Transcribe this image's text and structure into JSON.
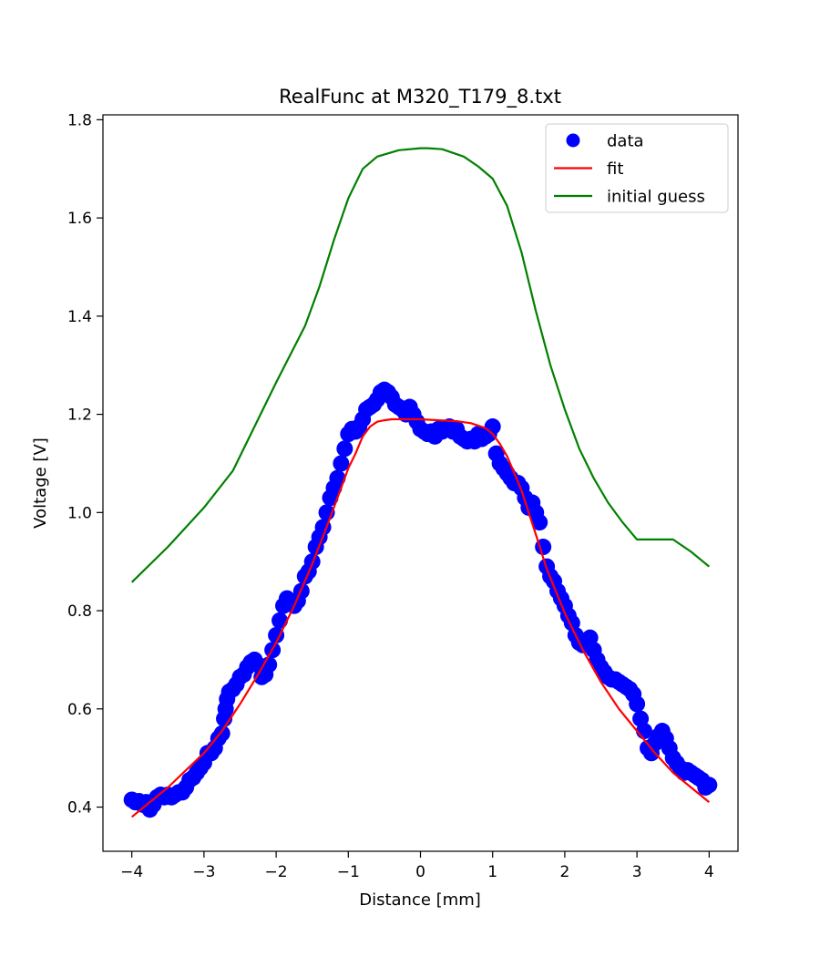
{
  "chart_data": {
    "type": "line",
    "title": "RealFunc at M320_T179_8.txt",
    "xlabel": "Distance [mm]",
    "ylabel": "Voltage [V]",
    "xlim": [
      -4.4,
      4.4
    ],
    "ylim": [
      0.31,
      1.81
    ],
    "xticks": [
      -4,
      -3,
      -2,
      -1,
      0,
      1,
      2,
      3,
      4
    ],
    "xtick_labels": [
      "−4",
      "−3",
      "−2",
      "−1",
      "0",
      "1",
      "2",
      "3",
      "4"
    ],
    "yticks": [
      0.4,
      0.6,
      0.8,
      1.0,
      1.2,
      1.4,
      1.6,
      1.8
    ],
    "ytick_labels": [
      "0.4",
      "0.6",
      "0.8",
      "1.0",
      "1.2",
      "1.4",
      "1.6",
      "1.8"
    ],
    "grid": false,
    "legend_position": "top-right",
    "series": [
      {
        "name": " data",
        "kind": "scatter",
        "color": "#0000ff",
        "points": [
          [
            -4.0,
            0.415
          ],
          [
            -3.95,
            0.41
          ],
          [
            -3.9,
            0.412
          ],
          [
            -3.85,
            0.405
          ],
          [
            -3.8,
            0.41
          ],
          [
            -3.75,
            0.395
          ],
          [
            -3.7,
            0.405
          ],
          [
            -3.65,
            0.42
          ],
          [
            -3.6,
            0.425
          ],
          [
            -3.55,
            0.42
          ],
          [
            -3.5,
            0.425
          ],
          [
            -3.45,
            0.42
          ],
          [
            -3.4,
            0.425
          ],
          [
            -3.35,
            0.43
          ],
          [
            -3.3,
            0.43
          ],
          [
            -3.25,
            0.44
          ],
          [
            -3.2,
            0.455
          ],
          [
            -3.15,
            0.46
          ],
          [
            -3.1,
            0.47
          ],
          [
            -3.05,
            0.48
          ],
          [
            -3.0,
            0.49
          ],
          [
            -2.95,
            0.51
          ],
          [
            -2.9,
            0.51
          ],
          [
            -2.85,
            0.52
          ],
          [
            -2.8,
            0.54
          ],
          [
            -2.75,
            0.55
          ],
          [
            -2.72,
            0.58
          ],
          [
            -2.7,
            0.6
          ],
          [
            -2.68,
            0.62
          ],
          [
            -2.65,
            0.635
          ],
          [
            -2.6,
            0.64
          ],
          [
            -2.55,
            0.65
          ],
          [
            -2.5,
            0.665
          ],
          [
            -2.45,
            0.67
          ],
          [
            -2.4,
            0.685
          ],
          [
            -2.35,
            0.695
          ],
          [
            -2.3,
            0.7
          ],
          [
            -2.25,
            0.69
          ],
          [
            -2.2,
            0.665
          ],
          [
            -2.15,
            0.67
          ],
          [
            -2.1,
            0.69
          ],
          [
            -2.05,
            0.72
          ],
          [
            -2.0,
            0.75
          ],
          [
            -1.95,
            0.78
          ],
          [
            -1.9,
            0.81
          ],
          [
            -1.85,
            0.825
          ],
          [
            -1.8,
            0.82
          ],
          [
            -1.75,
            0.81
          ],
          [
            -1.7,
            0.82
          ],
          [
            -1.65,
            0.84
          ],
          [
            -1.6,
            0.87
          ],
          [
            -1.55,
            0.88
          ],
          [
            -1.5,
            0.9
          ],
          [
            -1.45,
            0.93
          ],
          [
            -1.4,
            0.95
          ],
          [
            -1.35,
            0.97
          ],
          [
            -1.3,
            1.0
          ],
          [
            -1.25,
            1.03
          ],
          [
            -1.2,
            1.05
          ],
          [
            -1.15,
            1.07
          ],
          [
            -1.1,
            1.1
          ],
          [
            -1.05,
            1.13
          ],
          [
            -1.0,
            1.16
          ],
          [
            -0.95,
            1.17
          ],
          [
            -0.9,
            1.165
          ],
          [
            -0.85,
            1.175
          ],
          [
            -0.8,
            1.19
          ],
          [
            -0.75,
            1.21
          ],
          [
            -0.7,
            1.215
          ],
          [
            -0.65,
            1.22
          ],
          [
            -0.6,
            1.23
          ],
          [
            -0.55,
            1.245
          ],
          [
            -0.5,
            1.25
          ],
          [
            -0.45,
            1.245
          ],
          [
            -0.4,
            1.235
          ],
          [
            -0.35,
            1.22
          ],
          [
            -0.3,
            1.215
          ],
          [
            -0.25,
            1.21
          ],
          [
            -0.2,
            1.2
          ],
          [
            -0.15,
            1.215
          ],
          [
            -0.1,
            1.2
          ],
          [
            -0.05,
            1.185
          ],
          [
            0.0,
            1.17
          ],
          [
            0.05,
            1.165
          ],
          [
            0.1,
            1.16
          ],
          [
            0.15,
            1.165
          ],
          [
            0.2,
            1.155
          ],
          [
            0.25,
            1.17
          ],
          [
            0.3,
            1.165
          ],
          [
            0.35,
            1.17
          ],
          [
            0.4,
            1.175
          ],
          [
            0.45,
            1.165
          ],
          [
            0.5,
            1.17
          ],
          [
            0.55,
            1.155
          ],
          [
            0.6,
            1.15
          ],
          [
            0.65,
            1.145
          ],
          [
            0.7,
            1.15
          ],
          [
            0.75,
            1.145
          ],
          [
            0.8,
            1.16
          ],
          [
            0.85,
            1.15
          ],
          [
            0.9,
            1.155
          ],
          [
            0.95,
            1.16
          ],
          [
            1.0,
            1.175
          ],
          [
            1.05,
            1.12
          ],
          [
            1.1,
            1.1
          ],
          [
            1.15,
            1.09
          ],
          [
            1.2,
            1.08
          ],
          [
            1.25,
            1.07
          ],
          [
            1.3,
            1.06
          ],
          [
            1.35,
            1.06
          ],
          [
            1.4,
            1.05
          ],
          [
            1.45,
            1.03
          ],
          [
            1.5,
            1.01
          ],
          [
            1.55,
            1.02
          ],
          [
            1.6,
            1.0
          ],
          [
            1.65,
            0.98
          ],
          [
            1.7,
            0.93
          ],
          [
            1.75,
            0.89
          ],
          [
            1.8,
            0.87
          ],
          [
            1.85,
            0.86
          ],
          [
            1.9,
            0.84
          ],
          [
            1.95,
            0.825
          ],
          [
            2.0,
            0.81
          ],
          [
            2.05,
            0.79
          ],
          [
            2.1,
            0.775
          ],
          [
            2.15,
            0.75
          ],
          [
            2.2,
            0.735
          ],
          [
            2.25,
            0.73
          ],
          [
            2.3,
            0.74
          ],
          [
            2.35,
            0.745
          ],
          [
            2.4,
            0.72
          ],
          [
            2.45,
            0.7
          ],
          [
            2.5,
            0.685
          ],
          [
            2.55,
            0.675
          ],
          [
            2.6,
            0.665
          ],
          [
            2.65,
            0.66
          ],
          [
            2.7,
            0.66
          ],
          [
            2.75,
            0.655
          ],
          [
            2.8,
            0.65
          ],
          [
            2.85,
            0.645
          ],
          [
            2.9,
            0.64
          ],
          [
            2.95,
            0.63
          ],
          [
            3.0,
            0.61
          ],
          [
            3.05,
            0.58
          ],
          [
            3.1,
            0.555
          ],
          [
            3.15,
            0.52
          ],
          [
            3.2,
            0.51
          ],
          [
            3.25,
            0.53
          ],
          [
            3.3,
            0.545
          ],
          [
            3.35,
            0.555
          ],
          [
            3.4,
            0.54
          ],
          [
            3.45,
            0.52
          ],
          [
            3.5,
            0.5
          ],
          [
            3.55,
            0.49
          ],
          [
            3.6,
            0.48
          ],
          [
            3.65,
            0.47
          ],
          [
            3.7,
            0.475
          ],
          [
            3.75,
            0.47
          ],
          [
            3.8,
            0.465
          ],
          [
            3.85,
            0.46
          ],
          [
            3.9,
            0.455
          ],
          [
            3.95,
            0.44
          ],
          [
            4.0,
            0.445
          ]
        ]
      },
      {
        "name": "fit",
        "kind": "line",
        "color": "#ff0000",
        "points": [
          [
            -4.0,
            0.38
          ],
          [
            -3.75,
            0.41
          ],
          [
            -3.5,
            0.44
          ],
          [
            -3.25,
            0.475
          ],
          [
            -3.0,
            0.51
          ],
          [
            -2.75,
            0.555
          ],
          [
            -2.5,
            0.61
          ],
          [
            -2.25,
            0.67
          ],
          [
            -2.0,
            0.735
          ],
          [
            -1.75,
            0.81
          ],
          [
            -1.5,
            0.895
          ],
          [
            -1.25,
            0.99
          ],
          [
            -1.0,
            1.09
          ],
          [
            -0.9,
            1.12
          ],
          [
            -0.8,
            1.155
          ],
          [
            -0.7,
            1.175
          ],
          [
            -0.6,
            1.185
          ],
          [
            -0.5,
            1.188
          ],
          [
            -0.4,
            1.19
          ],
          [
            -0.2,
            1.19
          ],
          [
            0.0,
            1.19
          ],
          [
            0.25,
            1.188
          ],
          [
            0.5,
            1.186
          ],
          [
            0.7,
            1.182
          ],
          [
            0.9,
            1.172
          ],
          [
            1.0,
            1.16
          ],
          [
            1.1,
            1.14
          ],
          [
            1.2,
            1.115
          ],
          [
            1.3,
            1.08
          ],
          [
            1.4,
            1.045
          ],
          [
            1.5,
            1.0
          ],
          [
            1.6,
            0.955
          ],
          [
            1.75,
            0.885
          ],
          [
            2.0,
            0.795
          ],
          [
            2.25,
            0.72
          ],
          [
            2.5,
            0.655
          ],
          [
            2.75,
            0.6
          ],
          [
            3.0,
            0.555
          ],
          [
            3.25,
            0.51
          ],
          [
            3.5,
            0.47
          ],
          [
            3.75,
            0.44
          ],
          [
            4.0,
            0.41
          ]
        ]
      },
      {
        "name": "initial guess",
        "kind": "line",
        "color": "#008000",
        "points": [
          [
            -4.0,
            0.858
          ],
          [
            -3.5,
            0.93
          ],
          [
            -3.0,
            1.01
          ],
          [
            -2.6,
            1.085
          ],
          [
            -2.25,
            1.19
          ],
          [
            -2.0,
            1.265
          ],
          [
            -1.6,
            1.38
          ],
          [
            -1.4,
            1.46
          ],
          [
            -1.2,
            1.555
          ],
          [
            -1.0,
            1.64
          ],
          [
            -0.8,
            1.7
          ],
          [
            -0.6,
            1.725
          ],
          [
            -0.3,
            1.738
          ],
          [
            0.0,
            1.742
          ],
          [
            0.1,
            1.742
          ],
          [
            0.3,
            1.74
          ],
          [
            0.6,
            1.725
          ],
          [
            0.8,
            1.705
          ],
          [
            1.0,
            1.68
          ],
          [
            1.2,
            1.625
          ],
          [
            1.4,
            1.53
          ],
          [
            1.6,
            1.41
          ],
          [
            1.8,
            1.3
          ],
          [
            2.0,
            1.21
          ],
          [
            2.2,
            1.13
          ],
          [
            2.4,
            1.07
          ],
          [
            2.6,
            1.02
          ],
          [
            2.8,
            0.98
          ],
          [
            3.0,
            0.945
          ],
          [
            3.3,
            0.945
          ],
          [
            3.5,
            0.945
          ],
          [
            3.75,
            0.92
          ],
          [
            4.0,
            0.89
          ]
        ]
      }
    ]
  }
}
